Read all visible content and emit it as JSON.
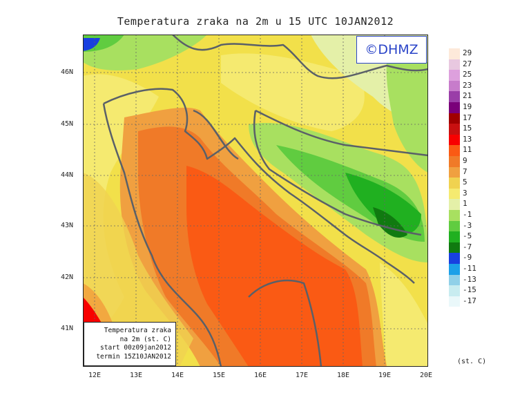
{
  "title": "Temperatura zraka na 2m u 15 UTC 10JAN2012",
  "logo": "©DHMZ",
  "info_box": {
    "line1": "Temperatura zraka",
    "line2": "na 2m (st. C)",
    "line3": "start 00z09jan2012",
    "line4": "termin 15Z10JAN2012"
  },
  "lat_labels": [
    "46N",
    "45N",
    "44N",
    "43N",
    "42N",
    "41N"
  ],
  "lon_labels": [
    "12E",
    "13E",
    "14E",
    "15E",
    "16E",
    "17E",
    "18E",
    "19E",
    "20E"
  ],
  "legend": {
    "unit": "(st. C)",
    "labels": [
      "29",
      "27",
      "25",
      "23",
      "21",
      "19",
      "17",
      "15",
      "13",
      "11",
      "9",
      "7",
      "5",
      "3",
      "1",
      "-1",
      "-3",
      "-5",
      "-7",
      "-9",
      "-11",
      "-13",
      "-15",
      "-17"
    ],
    "colors": [
      "#fde9da",
      "#e8c8e0",
      "#dda0dd",
      "#c77ccb",
      "#9a3ea8",
      "#7a007a",
      "#a00000",
      "#c81010",
      "#f80000",
      "#fa5a14",
      "#f07a28",
      "#f0a040",
      "#f0d250",
      "#f5ea70",
      "#e4f0a8",
      "#a8e060",
      "#60cc40",
      "#20b020",
      "#107a10",
      "#1840e0",
      "#1ca0e8",
      "#90d0e8",
      "#c8ecf0",
      "#eaf8fa"
    ]
  },
  "colors": {
    "coastline": "#5a6068",
    "grid": "#666666",
    "logo_text": "#2a44c8"
  }
}
